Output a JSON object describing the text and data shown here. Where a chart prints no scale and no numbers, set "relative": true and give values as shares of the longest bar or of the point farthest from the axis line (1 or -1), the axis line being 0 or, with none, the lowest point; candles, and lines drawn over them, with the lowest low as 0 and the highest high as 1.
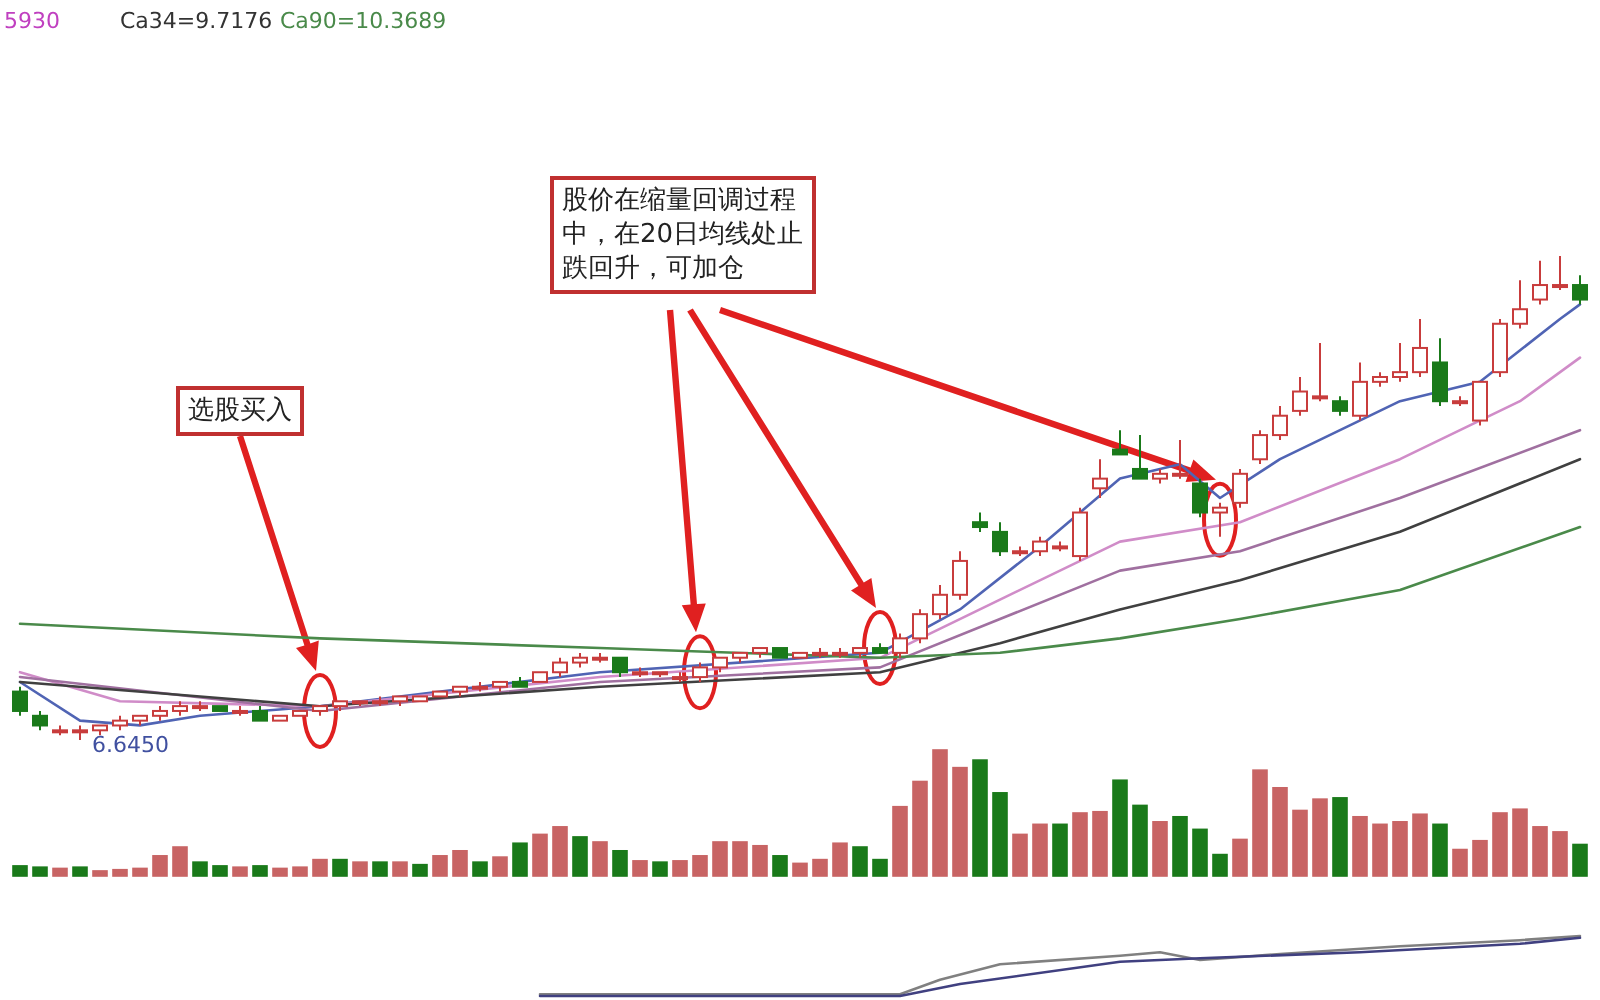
{
  "chart_data": [
    {
      "type": "candlestick",
      "relative": true,
      "categories": [
        null,
        null,
        null,
        null,
        null,
        null,
        null,
        null,
        null,
        null,
        null,
        null,
        null,
        null,
        null,
        null,
        null,
        null,
        null,
        null,
        null,
        null,
        null,
        null,
        null,
        null,
        null,
        null,
        null,
        null,
        null,
        null,
        null,
        null,
        null,
        null,
        null,
        null,
        null,
        null,
        null,
        null,
        null,
        null,
        null,
        null,
        null,
        null,
        null,
        null,
        null,
        null,
        null,
        null,
        null,
        null,
        null,
        null,
        null,
        null,
        null,
        null,
        null,
        null,
        null,
        null,
        null,
        null,
        null,
        null,
        null,
        null,
        null,
        null,
        null,
        null,
        null,
        null,
        null
      ],
      "ohlc": [
        [
          0.1,
          0.11,
          0.05,
          0.06
        ],
        [
          0.05,
          0.06,
          0.02,
          0.03
        ],
        [
          0.02,
          0.03,
          0.01,
          0.02
        ],
        [
          0.02,
          0.03,
          0,
          0.02
        ],
        [
          0.02,
          0.03,
          0.01,
          0.03
        ],
        [
          0.03,
          0.05,
          0.02,
          0.04
        ],
        [
          0.04,
          0.05,
          0.03,
          0.05
        ],
        [
          0.05,
          0.07,
          0.04,
          0.06
        ],
        [
          0.06,
          0.08,
          0.05,
          0.07
        ],
        [
          0.07,
          0.08,
          0.06,
          0.07
        ],
        [
          0.07,
          0.07,
          0.06,
          0.06
        ],
        [
          0.06,
          0.07,
          0.05,
          0.06
        ],
        [
          0.06,
          0.07,
          0.04,
          0.04
        ],
        [
          0.04,
          0.05,
          0.04,
          0.05
        ],
        [
          0.05,
          0.06,
          0.05,
          0.06
        ],
        [
          0.06,
          0.07,
          0.05,
          0.07
        ],
        [
          0.07,
          0.08,
          0.06,
          0.08
        ],
        [
          0.08,
          0.08,
          0.07,
          0.08
        ],
        [
          0.08,
          0.09,
          0.07,
          0.08
        ],
        [
          0.08,
          0.09,
          0.07,
          0.09
        ],
        [
          0.08,
          0.09,
          0.08,
          0.09
        ],
        [
          0.09,
          0.1,
          0.09,
          0.1
        ],
        [
          0.1,
          0.11,
          0.09,
          0.11
        ],
        [
          0.11,
          0.12,
          0.1,
          0.11
        ],
        [
          0.11,
          0.12,
          0.1,
          0.12
        ],
        [
          0.12,
          0.13,
          0.11,
          0.11
        ],
        [
          0.12,
          0.14,
          0.12,
          0.14
        ],
        [
          0.14,
          0.17,
          0.13,
          0.16
        ],
        [
          0.16,
          0.18,
          0.15,
          0.17
        ],
        [
          0.17,
          0.18,
          0.16,
          0.17
        ],
        [
          0.17,
          0.17,
          0.13,
          0.14
        ],
        [
          0.14,
          0.15,
          0.13,
          0.14
        ],
        [
          0.14,
          0.14,
          0.13,
          0.14
        ],
        [
          0.13,
          0.14,
          0.12,
          0.13
        ],
        [
          0.13,
          0.16,
          0.12,
          0.15
        ],
        [
          0.15,
          0.17,
          0.14,
          0.17
        ],
        [
          0.17,
          0.18,
          0.16,
          0.18
        ],
        [
          0.18,
          0.19,
          0.17,
          0.19
        ],
        [
          0.19,
          0.19,
          0.17,
          0.17
        ],
        [
          0.17,
          0.18,
          0.17,
          0.18
        ],
        [
          0.18,
          0.19,
          0.17,
          0.18
        ],
        [
          0.18,
          0.19,
          0.17,
          0.18
        ],
        [
          0.18,
          0.19,
          0.17,
          0.19
        ],
        [
          0.19,
          0.2,
          0.18,
          0.18
        ],
        [
          0.18,
          0.22,
          0.17,
          0.21
        ],
        [
          0.21,
          0.27,
          0.2,
          0.26
        ],
        [
          0.26,
          0.32,
          0.25,
          0.3
        ],
        [
          0.3,
          0.39,
          0.29,
          0.37
        ],
        [
          0.45,
          0.47,
          0.43,
          0.44
        ],
        [
          0.43,
          0.45,
          0.38,
          0.39
        ],
        [
          0.39,
          0.4,
          0.38,
          0.39
        ],
        [
          0.39,
          0.42,
          0.38,
          0.41
        ],
        [
          0.4,
          0.41,
          0.39,
          0.4
        ],
        [
          0.38,
          0.48,
          0.37,
          0.47
        ],
        [
          0.52,
          0.58,
          0.5,
          0.54
        ],
        [
          0.6,
          0.64,
          0.59,
          0.59
        ],
        [
          0.56,
          0.63,
          0.54,
          0.54
        ],
        [
          0.54,
          0.56,
          0.53,
          0.55
        ],
        [
          0.55,
          0.62,
          0.54,
          0.55
        ],
        [
          0.53,
          0.54,
          0.46,
          0.47
        ],
        [
          0.47,
          0.49,
          0.42,
          0.48
        ],
        [
          0.49,
          0.56,
          0.48,
          0.55
        ],
        [
          0.58,
          0.64,
          0.57,
          0.63
        ],
        [
          0.63,
          0.69,
          0.62,
          0.67
        ],
        [
          0.68,
          0.75,
          0.67,
          0.72
        ],
        [
          0.71,
          0.82,
          0.7,
          0.71
        ],
        [
          0.7,
          0.71,
          0.67,
          0.68
        ],
        [
          0.67,
          0.78,
          0.66,
          0.74
        ],
        [
          0.74,
          0.76,
          0.73,
          0.75
        ],
        [
          0.75,
          0.82,
          0.74,
          0.76
        ],
        [
          0.76,
          0.87,
          0.75,
          0.81
        ],
        [
          0.78,
          0.83,
          0.69,
          0.7
        ],
        [
          0.7,
          0.71,
          0.69,
          0.7
        ],
        [
          0.66,
          0.74,
          0.65,
          0.74
        ],
        [
          0.76,
          0.87,
          0.75,
          0.86
        ],
        [
          0.86,
          0.95,
          0.85,
          0.89
        ],
        [
          0.91,
          0.99,
          0.9,
          0.94
        ],
        [
          0.94,
          1.0,
          0.93,
          0.94
        ],
        [
          0.94,
          0.96,
          0.9,
          0.91
        ]
      ],
      "series": [
        {
          "type": "line",
          "color": "#5064b4",
          "values": [
            0.12,
            null,
            null,
            0.04,
            null,
            null,
            0.03,
            null,
            null,
            0.05,
            null,
            null,
            null,
            null,
            null,
            0.07,
            null,
            null,
            null,
            null,
            null,
            null,
            null,
            null,
            null,
            null,
            null,
            null,
            null,
            0.14,
            null,
            null,
            null,
            null,
            null,
            null,
            null,
            null,
            null,
            null,
            null,
            null,
            null,
            0.18,
            null,
            null,
            null,
            0.27,
            null,
            null,
            null,
            0.4,
            null,
            null,
            null,
            0.54,
            null,
            null,
            0.57,
            null,
            0.5,
            null,
            null,
            0.58,
            null,
            null,
            null,
            null,
            null,
            0.7,
            null,
            null,
            null,
            0.74,
            null,
            null,
            null,
            0.87,
            0.9
          ]
        },
        {
          "type": "line",
          "color": "#d08cc8",
          "values": [
            0.14,
            null,
            null,
            null,
            null,
            0.08,
            null,
            null,
            null,
            null,
            null,
            null,
            null,
            null,
            null,
            0.07,
            null,
            null,
            null,
            null,
            null,
            null,
            null,
            null,
            null,
            null,
            null,
            null,
            null,
            0.13,
            null,
            null,
            null,
            null,
            null,
            null,
            null,
            null,
            null,
            null,
            null,
            null,
            null,
            0.17,
            null,
            null,
            null,
            null,
            null,
            0.29,
            null,
            null,
            null,
            null,
            null,
            0.41,
            null,
            null,
            null,
            null,
            null,
            0.45,
            null,
            null,
            null,
            null,
            null,
            null,
            null,
            0.58,
            null,
            null,
            null,
            null,
            null,
            0.7,
            null,
            null,
            0.79
          ]
        },
        {
          "type": "line",
          "color": "#a070a0",
          "values": [
            0.13,
            null,
            null,
            null,
            null,
            null,
            null,
            null,
            null,
            null,
            null,
            null,
            null,
            null,
            null,
            0.06,
            null,
            null,
            null,
            null,
            null,
            null,
            null,
            null,
            null,
            null,
            null,
            null,
            null,
            0.12,
            null,
            null,
            null,
            null,
            null,
            null,
            null,
            null,
            null,
            null,
            null,
            null,
            null,
            0.15,
            null,
            null,
            null,
            null,
            null,
            0.25,
            null,
            null,
            null,
            null,
            null,
            0.35,
            null,
            null,
            null,
            null,
            null,
            0.39,
            null,
            null,
            null,
            null,
            null,
            null,
            null,
            0.5,
            null,
            null,
            null,
            null,
            null,
            null,
            null,
            null,
            0.64
          ]
        },
        {
          "type": "line",
          "color": "#404040",
          "values": [
            0.12,
            null,
            null,
            null,
            null,
            null,
            null,
            null,
            null,
            null,
            null,
            null,
            null,
            null,
            null,
            0.07,
            null,
            null,
            null,
            null,
            null,
            null,
            null,
            null,
            null,
            null,
            null,
            null,
            null,
            0.11,
            null,
            null,
            null,
            null,
            null,
            null,
            null,
            null,
            null,
            null,
            null,
            null,
            null,
            0.14,
            null,
            null,
            null,
            null,
            null,
            0.2,
            null,
            null,
            null,
            null,
            null,
            0.27,
            null,
            null,
            null,
            null,
            null,
            0.33,
            null,
            null,
            null,
            null,
            null,
            null,
            null,
            0.43,
            null,
            null,
            null,
            null,
            null,
            null,
            null,
            null,
            0.58
          ]
        },
        {
          "type": "line",
          "color": "#4a8a4a",
          "values": [
            0.24,
            null,
            null,
            null,
            null,
            null,
            null,
            null,
            null,
            null,
            null,
            null,
            null,
            null,
            null,
            0.21,
            null,
            null,
            null,
            null,
            null,
            null,
            null,
            null,
            null,
            null,
            null,
            null,
            null,
            0.19,
            null,
            null,
            null,
            null,
            null,
            null,
            null,
            null,
            null,
            null,
            null,
            null,
            null,
            0.17,
            null,
            null,
            null,
            null,
            null,
            0.18,
            null,
            null,
            null,
            null,
            null,
            0.21,
            null,
            null,
            null,
            null,
            null,
            0.25,
            null,
            null,
            null,
            null,
            null,
            null,
            null,
            0.31,
            null,
            null,
            null,
            null,
            null,
            null,
            null,
            null,
            0.44
          ]
        }
      ],
      "annotations": [
        "5930",
        "Ca34=9.7176",
        "Ca90=10.3689",
        "6.6450",
        "选股买入",
        "股价在缩量回调过程中，在20日均线处止跌回升，可加仓"
      ]
    },
    {
      "type": "bar",
      "relative": true,
      "categories": [
        null,
        null,
        null,
        null,
        null,
        null,
        null,
        null,
        null,
        null,
        null,
        null,
        null,
        null,
        null,
        null,
        null,
        null,
        null,
        null,
        null,
        null,
        null,
        null,
        null,
        null,
        null,
        null,
        null,
        null,
        null,
        null,
        null,
        null,
        null,
        null,
        null,
        null,
        null,
        null,
        null,
        null,
        null,
        null,
        null,
        null,
        null,
        null,
        null,
        null,
        null,
        null,
        null,
        null,
        null,
        null,
        null,
        null,
        null,
        null,
        null,
        null,
        null,
        null,
        null,
        null,
        null,
        null,
        null,
        null,
        null,
        null,
        null,
        null,
        null,
        null,
        null,
        null,
        null
      ],
      "values": [
        0.08,
        0.07,
        0.06,
        0.07,
        0.04,
        0.05,
        0.06,
        0.16,
        0.23,
        0.11,
        0.08,
        0.07,
        0.08,
        0.06,
        0.07,
        0.13,
        0.13,
        0.11,
        0.11,
        0.11,
        0.09,
        0.16,
        0.2,
        0.11,
        0.15,
        0.26,
        0.33,
        0.39,
        0.31,
        0.27,
        0.2,
        0.12,
        0.11,
        0.12,
        0.16,
        0.27,
        0.27,
        0.24,
        0.16,
        0.1,
        0.13,
        0.26,
        0.23,
        0.13,
        0.55,
        0.75,
        1,
        0.86,
        0.92,
        0.66,
        0.33,
        0.41,
        0.41,
        0.5,
        0.51,
        0.76,
        0.56,
        0.43,
        0.47,
        0.37,
        0.17,
        0.29,
        0.84,
        0.7,
        0.52,
        0.61,
        0.62,
        0.47,
        0.41,
        0.43,
        0.49,
        0.41,
        0.21,
        0.28,
        0.5,
        0.53,
        0.39,
        0.35,
        0.25
      ],
      "colors": [
        "#1a7a1a",
        "#1a7a1a",
        "#c86464",
        "#1a7a1a",
        "#c86464",
        "#c86464",
        "#c86464",
        "#c86464",
        "#c86464",
        "#1a7a1a",
        "#1a7a1a",
        "#c86464",
        "#1a7a1a",
        "#c86464",
        "#c86464",
        "#c86464",
        "#1a7a1a",
        "#c86464",
        "#1a7a1a",
        "#c86464",
        "#1a7a1a",
        "#c86464",
        "#c86464",
        "#1a7a1a",
        "#c86464",
        "#1a7a1a",
        "#c86464",
        "#c86464",
        "#1a7a1a",
        "#c86464",
        "#1a7a1a",
        "#c86464",
        "#1a7a1a",
        "#c86464",
        "#c86464",
        "#c86464",
        "#c86464",
        "#c86464",
        "#1a7a1a",
        "#c86464",
        "#c86464",
        "#c86464",
        "#1a7a1a",
        "#1a7a1a",
        "#c86464",
        "#c86464",
        "#c86464",
        "#c86464",
        "#1a7a1a",
        "#1a7a1a",
        "#c86464",
        "#c86464",
        "#1a7a1a",
        "#c86464",
        "#c86464",
        "#1a7a1a",
        "#1a7a1a",
        "#c86464",
        "#1a7a1a",
        "#1a7a1a",
        "#1a7a1a",
        "#c86464",
        "#c86464",
        "#c86464",
        "#c86464",
        "#c86464",
        "#1a7a1a",
        "#c86464",
        "#c86464",
        "#c86464",
        "#c86464",
        "#1a7a1a",
        "#c86464",
        "#c86464",
        "#c86464",
        "#c86464",
        "#c86464",
        "#c86464",
        "#1a7a1a"
      ]
    },
    {
      "type": "line",
      "relative": true,
      "categories": [
        null,
        null,
        null,
        null,
        null,
        null,
        null,
        null,
        null,
        null,
        null,
        null,
        null,
        null,
        null,
        null,
        null,
        null,
        null,
        null,
        null,
        null,
        null,
        null,
        null,
        null,
        null,
        null,
        null,
        null,
        null,
        null,
        null,
        null,
        null,
        null,
        null,
        null,
        null,
        null,
        null,
        null,
        null,
        null,
        null,
        null,
        null,
        null,
        null,
        null,
        null,
        null,
        null,
        null,
        null,
        null,
        null,
        null,
        null,
        null,
        null,
        null,
        null,
        null,
        null,
        null,
        null,
        null,
        null,
        null,
        null,
        null,
        null,
        null,
        null,
        null,
        null,
        null,
        null
      ],
      "series": [
        {
          "color": "#808080",
          "values": [
            null,
            null,
            null,
            null,
            null,
            null,
            null,
            null,
            null,
            null,
            null,
            null,
            null,
            null,
            null,
            null,
            null,
            null,
            null,
            null,
            null,
            null,
            null,
            null,
            null,
            null,
            0.03,
            null,
            null,
            null,
            null,
            null,
            null,
            null,
            null,
            null,
            null,
            null,
            null,
            null,
            null,
            null,
            null,
            null,
            0.03,
            null,
            0.27,
            null,
            null,
            0.53,
            null,
            null,
            null,
            null,
            null,
            0.67,
            null,
            0.73,
            null,
            0.6,
            null,
            null,
            null,
            0.7,
            null,
            null,
            null,
            null,
            null,
            0.83,
            null,
            null,
            null,
            null,
            null,
            0.93,
            null,
            null,
            1
          ]
        },
        {
          "color": "#404080",
          "values": [
            null,
            null,
            null,
            null,
            null,
            null,
            null,
            null,
            null,
            null,
            null,
            null,
            null,
            null,
            null,
            null,
            null,
            null,
            null,
            null,
            null,
            null,
            null,
            null,
            null,
            null,
            0,
            null,
            null,
            null,
            null,
            null,
            null,
            null,
            null,
            null,
            null,
            null,
            null,
            null,
            null,
            null,
            null,
            null,
            0,
            null,
            null,
            0.2,
            null,
            null,
            null,
            null,
            null,
            null,
            null,
            0.57,
            null,
            null,
            null,
            0.63,
            null,
            null,
            null,
            null,
            null,
            null,
            null,
            0.73,
            null,
            null,
            null,
            null,
            null,
            null,
            null,
            0.87,
            null,
            null,
            0.97
          ]
        }
      ]
    }
  ]
}
